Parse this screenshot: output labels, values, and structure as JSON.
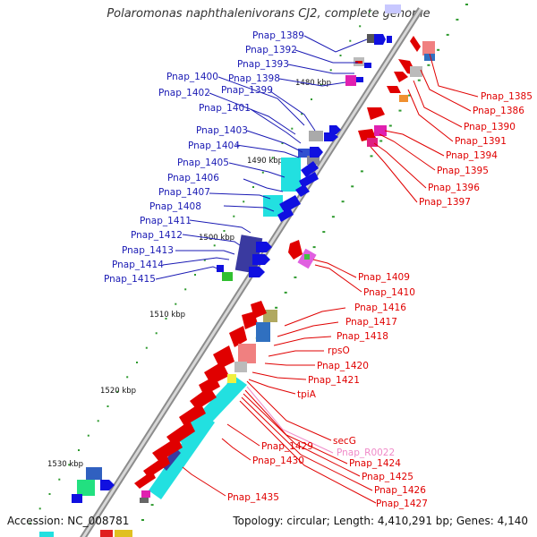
{
  "title": "Polaromonas naphthalenivorans CJ2, complete genome",
  "accession": "Accession: NC_008781",
  "summary": "Topology: circular; Length: 4,410,291 bp; Genes: 4,140",
  "ticks": [
    "1480 kbp",
    "1490 kbp",
    "1500 kbp",
    "1510 kbp",
    "1520 kbp",
    "1530 kbp"
  ],
  "left_labels": [
    "Pnap_1389",
    "Pnap_1392",
    "Pnap_1393",
    "Pnap_1398",
    "Pnap_1399",
    "Pnap_1400",
    "Pnap_1402",
    "Pnap_1401",
    "Pnap_1403",
    "Pnap_1404",
    "Pnap_1405",
    "Pnap_1406",
    "Pnap_1407",
    "Pnap_1408",
    "Pnap_1411",
    "Pnap_1412",
    "Pnap_1413",
    "Pnap_1414",
    "Pnap_1415"
  ],
  "right_labels": [
    "Pnap_1385",
    "Pnap_1386",
    "Pnap_1390",
    "Pnap_1391",
    "Pnap_1394",
    "Pnap_1395",
    "Pnap_1396",
    "Pnap_1397",
    "Pnap_1409",
    "Pnap_1410",
    "Pnap_1416",
    "Pnap_1417",
    "Pnap_1418",
    "rpsO",
    "Pnap_1420",
    "Pnap_1421",
    "tpiA",
    "secG",
    "Pnap_R0022",
    "Pnap_1424",
    "Pnap_1425",
    "Pnap_1426",
    "Pnap_1427",
    "Pnap_1429",
    "Pnap_1430",
    "Pnap_1435"
  ],
  "colors": {
    "left_label": "#1a1ab4",
    "right_label": "#e00000",
    "rna_label": "#f08ac8",
    "backbone": "#9a9a9a",
    "tick_mark": "#2e9a2e"
  }
}
